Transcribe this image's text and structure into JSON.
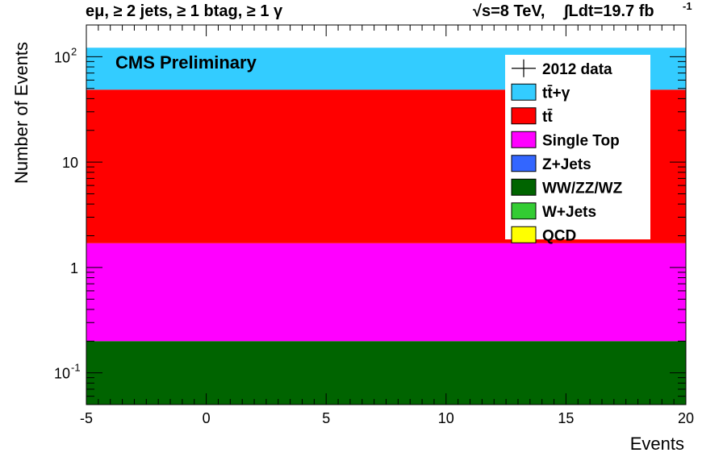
{
  "chart_data": {
    "type": "bar",
    "scale": "log",
    "title_left": "eμ, ≥ 2 jets, ≥ 1 btag, ≥ 1 γ",
    "title_right_energy": "√s=8 TeV,",
    "title_right_lumi": "∫Ldt=19.7 fb",
    "title_right_lumi_exp": "-1",
    "label": "CMS Preliminary",
    "xlabel": "Events",
    "ylabel": "Number of Events",
    "xlim": [
      -5,
      20
    ],
    "ylim": [
      0.05,
      200
    ],
    "x_ticks": [
      "-5",
      "0",
      "5",
      "10",
      "15",
      "20"
    ],
    "y_ticks": [
      {
        "value": 0.1,
        "base": "10",
        "exp": "-1"
      },
      {
        "value": 1,
        "base": "1",
        "exp": ""
      },
      {
        "value": 10,
        "base": "10",
        "exp": ""
      },
      {
        "value": 100,
        "base": "10",
        "exp": "2"
      }
    ],
    "stack": [
      {
        "name": "WW/ZZ/WZ",
        "color": "#006400",
        "value": 0.2
      },
      {
        "name": "Single Top",
        "color": "#ff00ff",
        "value": 1.5
      },
      {
        "name": "tt̄",
        "color": "#ff0000",
        "value": 47
      },
      {
        "name": "tt̄+γ",
        "color": "#33ccff",
        "value": 73
      }
    ],
    "legend": [
      {
        "name": "2012 data",
        "marker": "data"
      },
      {
        "name": "tt̄+γ",
        "color": "#33ccff"
      },
      {
        "name": "tt̄",
        "color": "#ff0000"
      },
      {
        "name": "Single Top",
        "color": "#ff00ff"
      },
      {
        "name": "Z+Jets",
        "color": "#3366ff"
      },
      {
        "name": "WW/ZZ/WZ",
        "color": "#006400"
      },
      {
        "name": "W+Jets",
        "color": "#33cc33"
      },
      {
        "name": "QCD",
        "color": "#ffff00"
      }
    ],
    "legend_position": "top-right",
    "grid": false
  }
}
